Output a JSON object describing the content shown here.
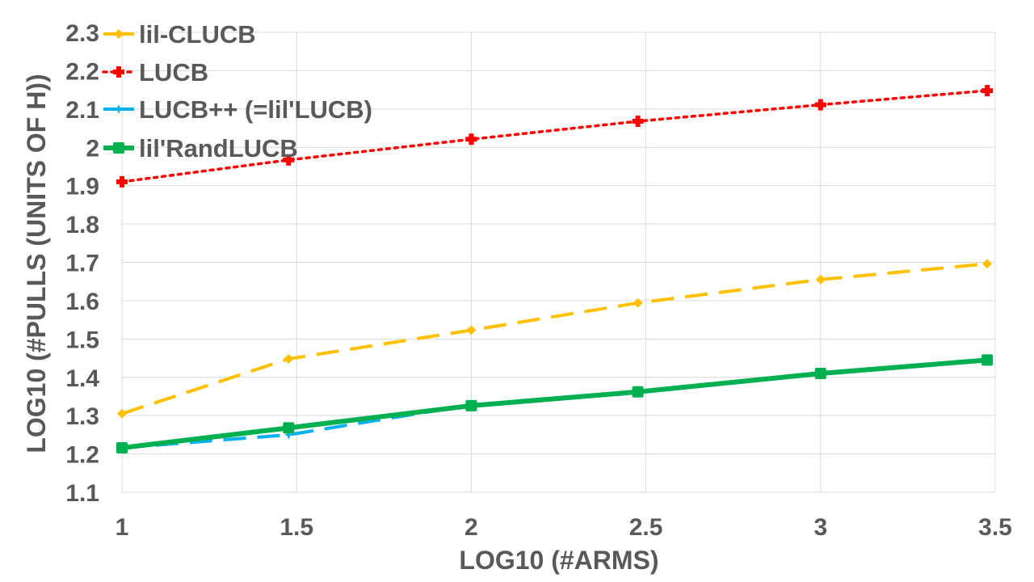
{
  "chart_data": {
    "type": "line",
    "title": "",
    "xlabel": "LOG10 (#ARMS)",
    "ylabel": "LOG10 (#PULLS (UNITS OF H))",
    "xlim": [
      1,
      3.5
    ],
    "ylim": [
      1.1,
      2.3
    ],
    "x_ticks": [
      "1",
      "1.5",
      "2",
      "2.5",
      "3",
      "3.5"
    ],
    "y_ticks": [
      "1.1",
      "1.2",
      "1.3",
      "1.4",
      "1.5",
      "1.6",
      "1.7",
      "1.8",
      "1.9",
      "2",
      "2.1",
      "2.2",
      "2.3"
    ],
    "grid": true,
    "legend_position": "top-left",
    "x": [
      1,
      1.477,
      2,
      2.477,
      3,
      3.477
    ],
    "series": [
      {
        "name": "lil-CLUCB",
        "color": "#FFC000",
        "dash": "dashed",
        "marker": "diamond",
        "values": [
          1.305,
          1.448,
          1.523,
          1.594,
          1.655,
          1.696
        ]
      },
      {
        "name": "LUCB",
        "color": "#FF0000",
        "dash": "dotted",
        "marker": "plus",
        "values": [
          1.91,
          1.967,
          2.021,
          2.068,
          2.111,
          2.148
        ]
      },
      {
        "name": "LUCB++ (=lil'LUCB)",
        "color": "#00B0F0",
        "dash": "dashed",
        "marker": "star",
        "values": [
          1.216,
          1.25,
          1.328,
          1.36,
          1.408,
          1.445
        ]
      },
      {
        "name": "lil'RandLUCB",
        "color": "#00B050",
        "dash": "solid",
        "marker": "square",
        "values": [
          1.216,
          1.268,
          1.326,
          1.362,
          1.41,
          1.445
        ]
      }
    ]
  }
}
